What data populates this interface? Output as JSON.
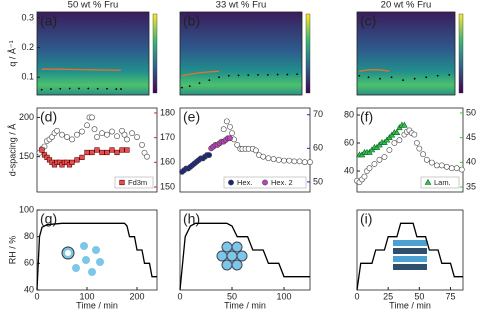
{
  "chart_data": [
    {
      "type": "heatmap",
      "title": "50 wt % Fru",
      "annotation": "(a)",
      "ylabel": "q / Å⁻¹",
      "xlim": [
        0,
        240
      ],
      "ylim": [
        0.04,
        0.32
      ],
      "yticks": [
        0.1,
        0.2,
        0.3
      ],
      "series": [
        {
          "color": "#e8702a",
          "marker": "line",
          "x": [
            10,
            40,
            80,
            120,
            160,
            180
          ],
          "values": [
            0.127,
            0.127,
            0.126,
            0.125,
            0.124,
            0.124
          ]
        },
        {
          "color": "#000000",
          "marker": "dot",
          "x": [
            10,
            30,
            50,
            70,
            90,
            110,
            130,
            150,
            170,
            180
          ],
          "values": [
            0.058,
            0.06,
            0.061,
            0.062,
            0.062,
            0.062,
            0.061,
            0.061,
            0.06,
            0.06
          ]
        }
      ]
    },
    {
      "type": "heatmap",
      "title": "33 wt % Fru",
      "annotation": "(b)",
      "xlim": [
        0,
        125
      ],
      "ylim": [
        0.04,
        0.32
      ],
      "series": [
        {
          "color": "#e8702a",
          "marker": "line",
          "x": [
            2,
            10,
            20,
            30,
            40
          ],
          "values": [
            0.105,
            0.11,
            0.115,
            0.118,
            0.12
          ]
        },
        {
          "color": "#000000",
          "marker": "dot",
          "x": [
            2,
            10,
            20,
            30,
            40,
            50,
            60,
            70,
            80,
            90,
            100,
            110,
            120
          ],
          "values": [
            0.065,
            0.07,
            0.08,
            0.09,
            0.1,
            0.105,
            0.106,
            0.107,
            0.108,
            0.108,
            0.109,
            0.109,
            0.11
          ]
        }
      ]
    },
    {
      "type": "heatmap",
      "title": "20 wt % Fru",
      "annotation": "(c)",
      "xlim": [
        0,
        85
      ],
      "ylim": [
        0.04,
        0.32
      ],
      "series": [
        {
          "color": "#e8702a",
          "marker": "line",
          "x": [
            2,
            10,
            20,
            28
          ],
          "values": [
            0.12,
            0.125,
            0.125,
            0.12
          ]
        },
        {
          "color": "#000000",
          "marker": "dot",
          "x": [
            2,
            10,
            20,
            30,
            40,
            50,
            60,
            70,
            80
          ],
          "values": [
            0.105,
            0.1,
            0.095,
            0.1,
            0.09,
            0.095,
            0.1,
            0.105,
            0.108
          ]
        }
      ]
    },
    {
      "type": "scatter",
      "annotation": "(d)",
      "ylabel": "d-spacing / Å",
      "xlim": [
        0,
        240
      ],
      "ylim": [
        105,
        212
      ],
      "yticks": [
        150,
        200
      ],
      "y2lim": [
        148,
        182
      ],
      "y2ticks": [
        150,
        160,
        170,
        180
      ],
      "y2color": "#e02020",
      "legend": "lower right",
      "series": [
        {
          "color": "#ffffff",
          "marker": "circle",
          "x": [
            5,
            10,
            15,
            20,
            25,
            30,
            35,
            40,
            50,
            60,
            70,
            80,
            90,
            100,
            105,
            110,
            115,
            120,
            130,
            140,
            150,
            160,
            170,
            175,
            180,
            190,
            200,
            210,
            215,
            220
          ],
          "values": [
            155,
            160,
            163,
            170,
            172,
            175,
            180,
            183,
            178,
            175,
            172,
            178,
            182,
            190,
            200,
            200,
            185,
            175,
            180,
            178,
            182,
            176,
            183,
            178,
            172,
            180,
            175,
            165,
            155,
            150
          ]
        },
        {
          "name": "Fd3m",
          "color": "#e05050",
          "marker": "square",
          "axis": "y2",
          "x": [
            10,
            15,
            20,
            25,
            30,
            35,
            40,
            45,
            50,
            55,
            60,
            65,
            70,
            80,
            90,
            100,
            110,
            120,
            130,
            140,
            150,
            160,
            170,
            180
          ],
          "values": [
            165,
            163,
            162,
            161,
            160,
            159,
            160,
            160,
            159,
            160,
            160,
            159,
            160,
            161,
            162,
            164,
            164,
            165,
            164,
            164,
            165,
            164,
            165,
            165
          ]
        }
      ]
    },
    {
      "type": "scatter",
      "annotation": "(e)",
      "xlim": [
        0,
        125
      ],
      "ylim": [
        105,
        212
      ],
      "y2lim": [
        47,
        72
      ],
      "y2ticks": [
        50,
        60,
        70
      ],
      "y2color": "#2020d0",
      "legend": "lower right",
      "series": [
        {
          "color": "#ffffff",
          "marker": "circle",
          "x": [
            42,
            45,
            48,
            50,
            52,
            55,
            58,
            60,
            63,
            66,
            70,
            73,
            76,
            80,
            85,
            90,
            95,
            100,
            105,
            110,
            115,
            120,
            125
          ],
          "values": [
            185,
            195,
            188,
            180,
            172,
            165,
            160,
            160,
            160,
            160,
            160,
            158,
            152,
            150,
            148,
            147,
            146,
            145,
            145,
            144,
            144,
            143,
            143
          ]
        },
        {
          "name": "Hex.",
          "color": "#1a237e",
          "marker": "circle",
          "axis": "y2",
          "x": [
            2,
            4,
            6,
            8,
            10,
            12,
            14,
            16,
            18,
            20,
            22,
            24,
            26,
            28
          ],
          "values": [
            53,
            53.5,
            54,
            54,
            54.5,
            55,
            55.5,
            56,
            56.5,
            57,
            57,
            57.5,
            58,
            58
          ]
        },
        {
          "name": "Hex. 2",
          "color": "#c040c0",
          "marker": "circle",
          "axis": "y2",
          "x": [
            30,
            32,
            34,
            36,
            38,
            40,
            42,
            44,
            46,
            48
          ],
          "values": [
            60,
            60.5,
            61,
            61,
            61.5,
            62,
            62,
            62.5,
            63,
            63
          ]
        }
      ]
    },
    {
      "type": "scatter",
      "annotation": "(f)",
      "xlim": [
        0,
        85
      ],
      "ylim": [
        25,
        85
      ],
      "yticks": [
        40,
        60,
        80
      ],
      "y2lim": [
        34,
        51
      ],
      "y2ticks": [
        35,
        40,
        45,
        50
      ],
      "y2color": "#30c030",
      "legend": "lower right",
      "series": [
        {
          "color": "#ffffff",
          "marker": "circle",
          "x": [
            0,
            2,
            4,
            6,
            8,
            10,
            14,
            18,
            22,
            26,
            30,
            34,
            38,
            40,
            42,
            44,
            46,
            48,
            50,
            53,
            56,
            60,
            64,
            68,
            72,
            76,
            80,
            84
          ],
          "values": [
            33,
            32,
            34,
            36,
            40,
            42,
            45,
            48,
            50,
            55,
            60,
            62,
            66,
            68,
            69,
            67,
            66,
            60,
            56,
            52,
            48,
            46,
            44,
            44,
            43,
            42,
            42,
            41
          ]
        },
        {
          "name": "Lam.",
          "color": "#40c040",
          "marker": "triangle",
          "axis": "y2",
          "x": [
            2,
            4,
            6,
            8,
            10,
            12,
            14,
            16,
            18,
            20,
            22,
            24,
            26,
            28,
            30,
            32,
            34,
            36,
            38
          ],
          "values": [
            41.5,
            41.5,
            42,
            42,
            42,
            42.5,
            43,
            43,
            43.5,
            44,
            44,
            44.5,
            45,
            45.5,
            46,
            46,
            47,
            47.5,
            47.5
          ]
        }
      ]
    },
    {
      "type": "line",
      "annotation": "(g)",
      "ylabel": "RH / %",
      "xlabel": "Time / min",
      "xlim": [
        0,
        240
      ],
      "xticks": [
        0,
        100,
        200
      ],
      "ylim": [
        40,
        100
      ],
      "yticks": [
        40,
        60,
        80,
        100
      ],
      "series": [
        {
          "color": "#000000",
          "marker": "line",
          "x": [
            0,
            5,
            10,
            20,
            50,
            100,
            150,
            175,
            180,
            185,
            195,
            200,
            210,
            215,
            225,
            230,
            240
          ],
          "values": [
            40,
            80,
            87,
            89,
            90,
            90,
            90,
            90,
            88,
            80,
            80,
            70,
            70,
            60,
            60,
            50,
            50
          ]
        }
      ]
    },
    {
      "type": "line",
      "annotation": "(h)",
      "xlabel": "Time / min",
      "xlim": [
        0,
        125
      ],
      "xticks": [
        0,
        50,
        100
      ],
      "ylim": [
        40,
        100
      ],
      "series": [
        {
          "color": "#000000",
          "marker": "line",
          "x": [
            0,
            5,
            10,
            15,
            20,
            30,
            40,
            45,
            50,
            55,
            65,
            70,
            80,
            85,
            95,
            100,
            125
          ],
          "values": [
            40,
            80,
            88,
            90,
            90,
            90,
            90,
            90,
            88,
            80,
            80,
            70,
            70,
            60,
            60,
            50,
            50
          ]
        }
      ]
    },
    {
      "type": "line",
      "annotation": "(i)",
      "xlabel": "Time / min",
      "xlim": [
        0,
        85
      ],
      "xticks": [
        0,
        25,
        50,
        75
      ],
      "ylim": [
        40,
        100
      ],
      "series": [
        {
          "color": "#000000",
          "marker": "line",
          "x": [
            0,
            3,
            12,
            15,
            22,
            25,
            32,
            35,
            45,
            48,
            55,
            58,
            65,
            68,
            75,
            78,
            85
          ],
          "values": [
            40,
            60,
            60,
            70,
            70,
            80,
            80,
            90,
            90,
            80,
            80,
            70,
            70,
            60,
            60,
            50,
            50
          ]
        }
      ]
    }
  ]
}
